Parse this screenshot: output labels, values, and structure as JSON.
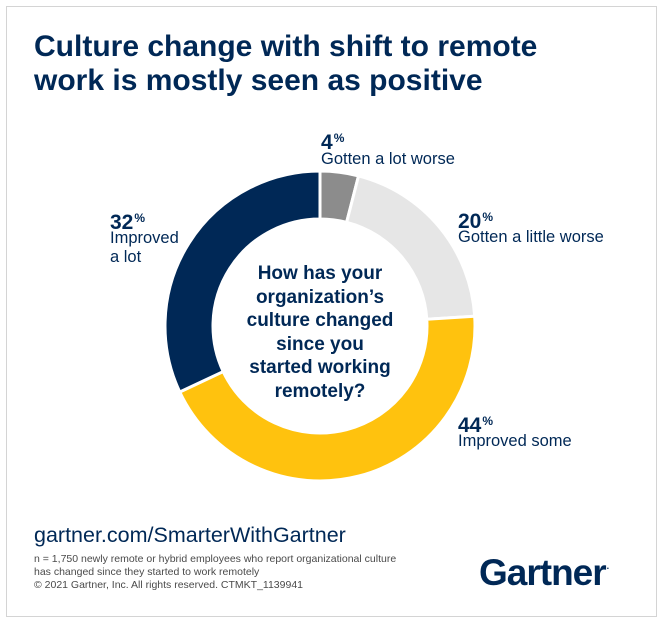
{
  "header": {
    "title_lines": [
      "Culture change with shift to remote",
      "work is mostly seen as positive"
    ]
  },
  "chart_data": {
    "type": "pie",
    "variant": "donut",
    "unit": "%",
    "start_angle_deg": 0,
    "direction": "clockwise",
    "slices": [
      {
        "value": 4,
        "pct_text": "4",
        "label_lines": [
          "Gotten a lot worse"
        ],
        "color": "#8c8c8c"
      },
      {
        "value": 20,
        "pct_text": "20",
        "label_lines": [
          "Gotten a little worse"
        ],
        "color": "#e6e6e6"
      },
      {
        "value": 44,
        "pct_text": "44",
        "label_lines": [
          "Improved some"
        ],
        "color": "#ffc20e"
      },
      {
        "value": 32,
        "pct_text": "32",
        "label_lines": [
          "Improved",
          "a lot"
        ],
        "color": "#002856"
      }
    ],
    "center_text_lines": [
      "How has your",
      "organization’s",
      "culture changed",
      "since you",
      "started working",
      "remotely?"
    ]
  },
  "footer": {
    "source_link": "gartner.com/SmarterWithGartner",
    "note_lines": [
      "n = 1,750 newly remote or hybrid employees who report organizational culture",
      "has changed since they started to work remotely",
      "© 2021 Gartner, Inc. All rights reserved. CTMKT_1139941"
    ],
    "logo_text": "Gartner",
    "logo_mark": "."
  }
}
